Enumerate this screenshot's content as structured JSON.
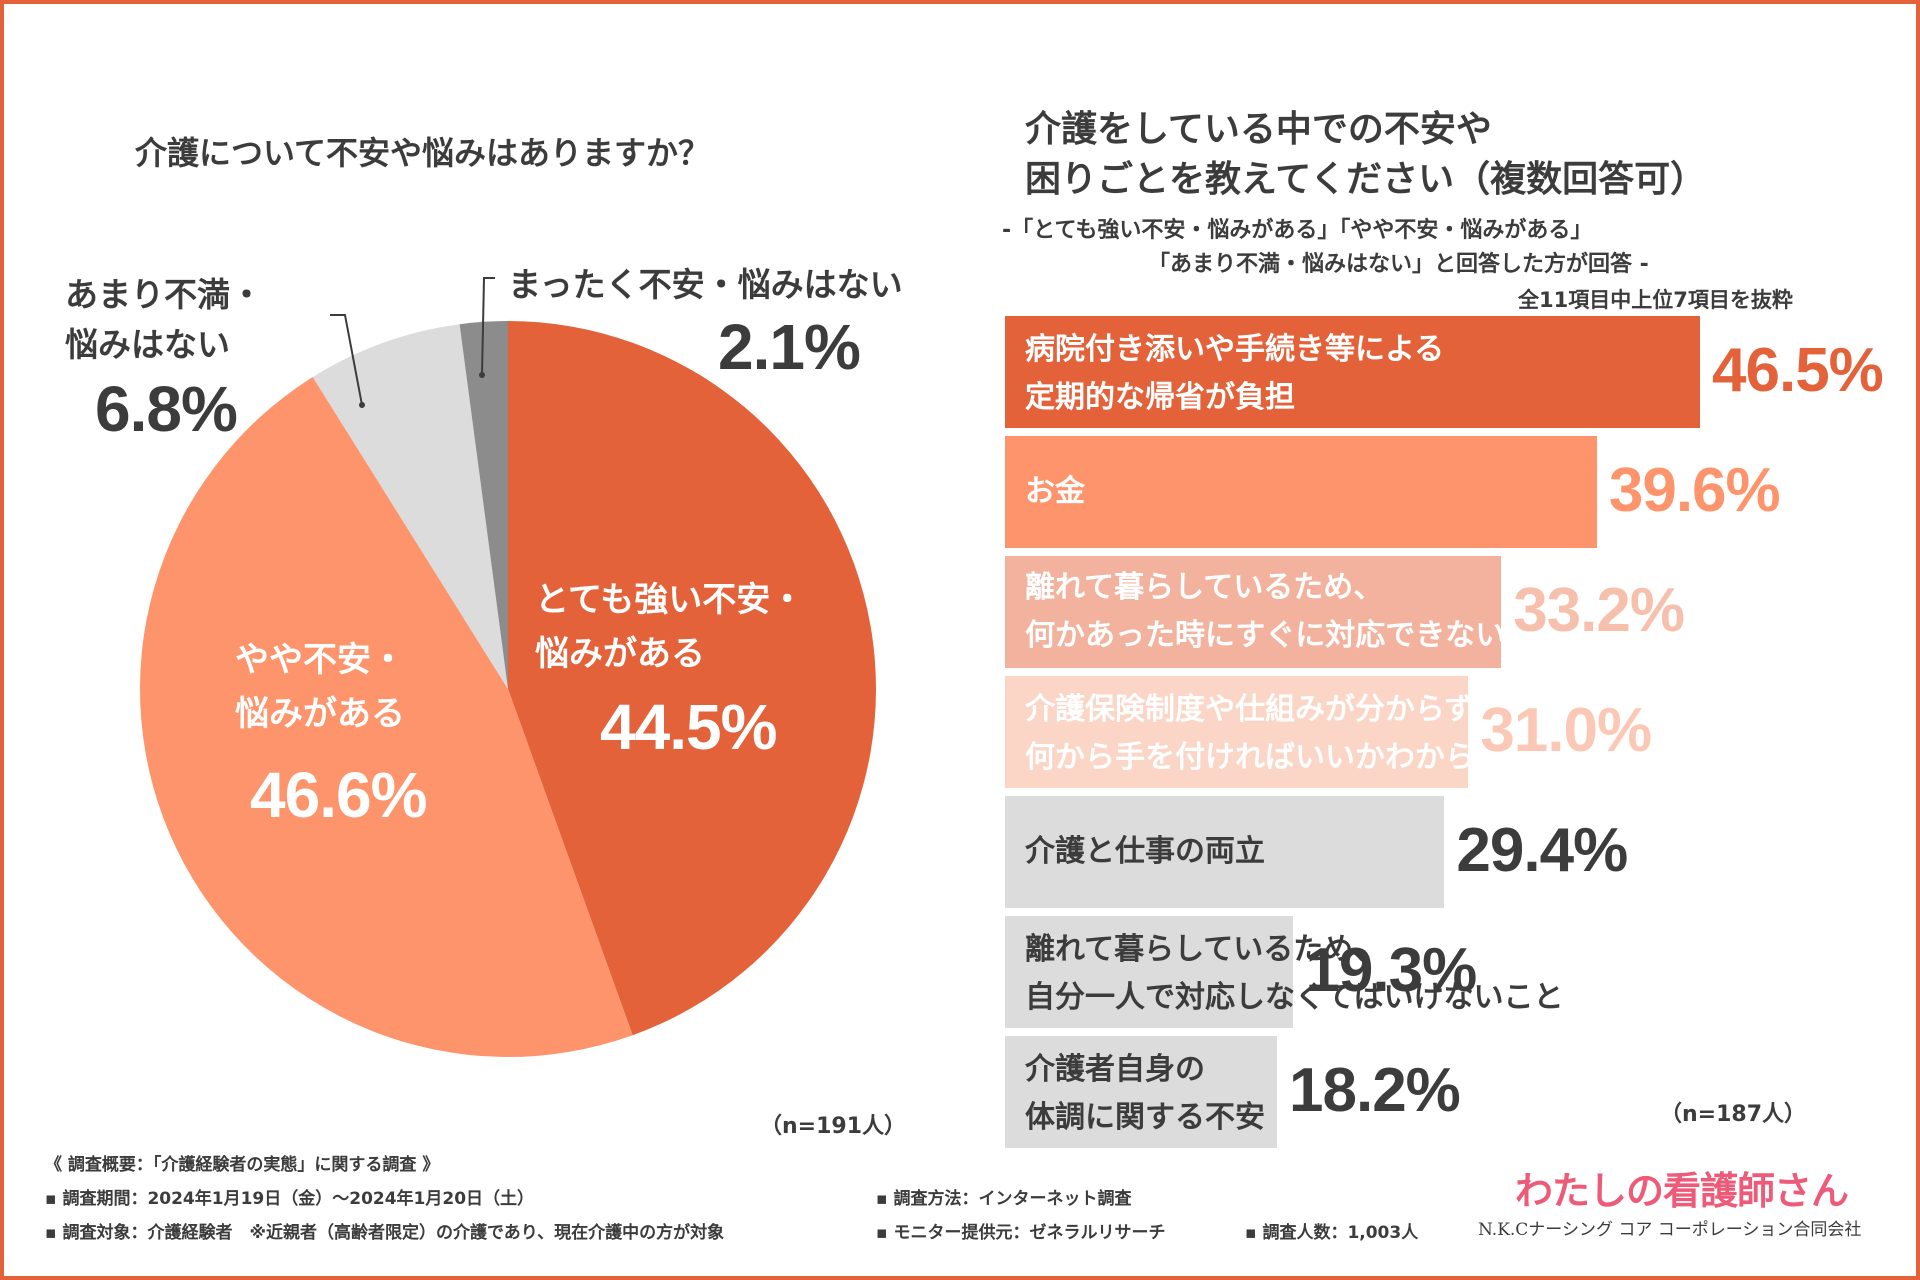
{
  "colors": {
    "border": "#e4623a",
    "strong": "#e4623a",
    "somewhat": "#fe946b",
    "not_much": "#dcdcdc",
    "none": "#8c8c8c",
    "text_dark": "#3c3c3c",
    "brand": "#ee5b78"
  },
  "chart_data": [
    {
      "type": "pie",
      "title": "介護について不安や悩みはありますか？",
      "sample": "（n=191人）",
      "slices": [
        {
          "label": "とても強い不安・悩みがある",
          "label_lines": [
            "とても強い不安・",
            "悩みがある"
          ],
          "value": 44.5,
          "value_text": "44.5%",
          "color": "#e4623a"
        },
        {
          "label": "やや不安・悩みがある",
          "label_lines": [
            "やや不安・",
            "悩みがある"
          ],
          "value": 46.6,
          "value_text": "46.6%",
          "color": "#fe946b"
        },
        {
          "label": "あまり不満・悩みはない",
          "label_lines": [
            "あまり不満・",
            "悩みはない"
          ],
          "value": 6.8,
          "value_text": "6.8%",
          "color": "#dcdcdc"
        },
        {
          "label": "まったく不安・悩みはない",
          "label_lines": [
            "まったく不安・悩みはない"
          ],
          "value": 2.1,
          "value_text": "2.1%",
          "color": "#8c8c8c"
        }
      ]
    },
    {
      "type": "bar",
      "title_lines": [
        "介護をしている中での不安や",
        "困りごとを教えてください（複数回答可）"
      ],
      "subtitle_lines": [
        "-「とても強い不安・悩みがある」「やや不安・悩みがある」",
        "「あまり不満・悩みはない」と回答した方が回答 -"
      ],
      "note": "全11項目中上位7項目を抜粋",
      "sample": "（n=187人）",
      "xlim": [
        0,
        50
      ],
      "bars": [
        {
          "label": "病院付き添いや手続き等による\n定期的な帰省が負担",
          "value": 46.5,
          "value_text": "46.5%",
          "color": "#e4623a",
          "text_color": "#ffffff",
          "value_color": "#e4623a"
        },
        {
          "label": "お金",
          "value": 39.6,
          "value_text": "39.6%",
          "color": "#fe946b",
          "text_color": "#ffffff",
          "value_color": "#fe946b"
        },
        {
          "label": "離れて暮らしているため、\n何かあった時にすぐに対応できない",
          "value": 33.2,
          "value_text": "33.2%",
          "color": "#f3b29e",
          "text_color": "#ffffff",
          "value_color": "#f7c0ad"
        },
        {
          "label": "介護保険制度や仕組みが分からず、\n何から手を付ければいいかわからない",
          "value": 31.0,
          "value_text": "31.0%",
          "color": "#fbd5c6",
          "text_color": "#ffffff",
          "value_color": "#fbc8b5"
        },
        {
          "label": "介護と仕事の両立",
          "value": 29.4,
          "value_text": "29.4%",
          "color": "#dcdcdc",
          "text_color": "#3c3c3c",
          "value_color": "#3c3c3c"
        },
        {
          "label": "離れて暮らしているため、\n自分一人で対応しなくてはいけないこと",
          "value": 19.3,
          "value_text": "19.3%",
          "color": "#dcdcdc",
          "text_color": "#3c3c3c",
          "value_color": "#3c3c3c"
        },
        {
          "label": "介護者自身の\n体調に関する不安",
          "value": 18.2,
          "value_text": "18.2%",
          "color": "#dcdcdc",
          "text_color": "#3c3c3c",
          "value_color": "#3c3c3c"
        }
      ]
    }
  ],
  "footer": {
    "heading": "《 調査概要：「介護経験者の実態」に関する調査 》",
    "period": "▪ 調査期間：2024年1月19日（金）〜2024年1月20日（土）",
    "target": "▪ 調査対象：介護経験者　※近親者（高齢者限定）の介護であり、現在介護中の方が対象",
    "method": "▪ 調査方法：インターネット調査",
    "provider": "▪ モニター提供元：ゼネラルリサーチ",
    "count": "▪ 調査人数：1,003人"
  },
  "brand": {
    "logo_text": "わたしの看護師さん",
    "company": "N.K.Cナーシング コア コーポレーション合同会社"
  }
}
